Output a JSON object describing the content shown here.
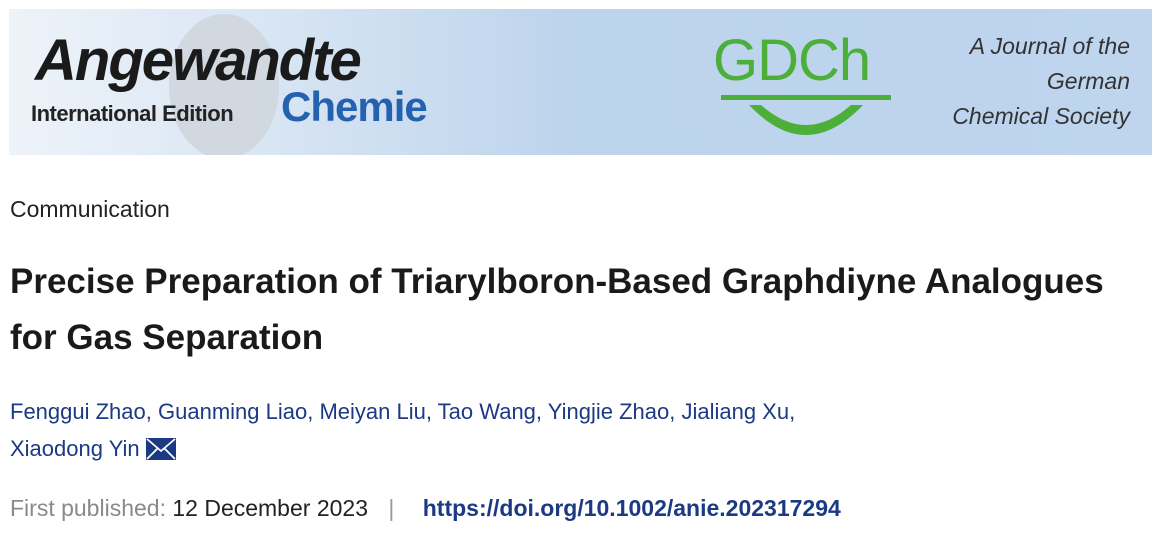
{
  "banner": {
    "journal_name": "Angewandte",
    "edition": "International Edition",
    "journal_name_2": "Chemie",
    "society_logo": "GDCh",
    "society_lines": [
      "A Journal of the",
      "German",
      "Chemical Society"
    ],
    "colors": {
      "chemie": "#2462b0",
      "gdch": "#4caf3a"
    }
  },
  "article": {
    "type": "Communication",
    "title": "Precise Preparation of Triarylboron-Based Graphdiyne Analogues for Gas Separation",
    "authors": [
      "Fenggui Zhao",
      "Guanming Liao",
      "Meiyan Liu",
      "Tao Wang",
      "Yingjie Zhao",
      "Jialiang Xu",
      "Xiaodong Yin"
    ],
    "corresponding_icon": "mail-icon",
    "first_published_label": "First published:",
    "first_published_date": "12 December 2023",
    "separator": "|",
    "doi": "https://doi.org/10.1002/anie.202317294"
  }
}
